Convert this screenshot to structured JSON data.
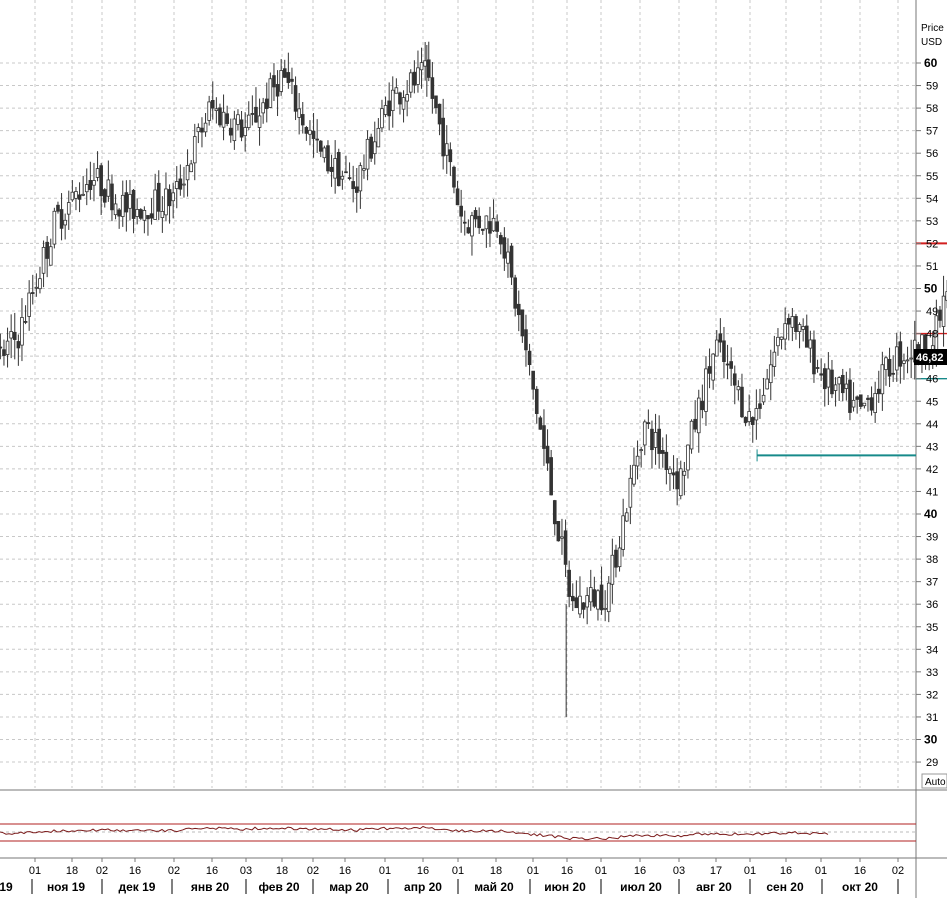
{
  "chart_data": {
    "type": "candlestick",
    "price_axis": {
      "label_line1": "Price",
      "label_line2": "USD",
      "ylim": [
        28,
        61
      ]
    },
    "y_ticks": [
      29,
      30,
      31,
      32,
      33,
      34,
      35,
      36,
      37,
      38,
      39,
      40,
      41,
      42,
      43,
      44,
      45,
      46,
      47,
      48,
      49,
      50,
      51,
      52,
      53,
      54,
      55,
      56,
      57,
      58,
      59,
      60
    ],
    "y_bold_ticks": [
      30,
      40,
      50,
      60
    ],
    "last_price": "46,82",
    "auto_label": "Auto",
    "day_ticks": [
      "01",
      "18",
      "02",
      "16",
      "02",
      "16",
      "03",
      "18",
      "02",
      "16",
      "01",
      "16",
      "01",
      "18",
      "01",
      "16",
      "01",
      "16",
      "03",
      "17",
      "01",
      "16",
      "01",
      "16",
      "02"
    ],
    "month_labels": [
      "19",
      "ноя 19",
      "дек 19",
      "янв 20",
      "фев 20",
      "мар 20",
      "апр 20",
      "май 20",
      "июн 20",
      "июл 20",
      "авг 20",
      "сен 20",
      "окт 20"
    ],
    "levels": [
      {
        "name": "resistance",
        "price": 52.0,
        "start": "2020-06-01",
        "color": "#d21f1f"
      },
      {
        "name": "resistance",
        "price": 48.0,
        "start": "2020-07-01",
        "color": "#d21f1f"
      },
      {
        "name": "support",
        "price": 46.0,
        "start": "2020-08-27",
        "color": "#178a8a"
      },
      {
        "name": "support",
        "price": 42.6,
        "start": "2020-04-24",
        "color": "#178a8a"
      }
    ],
    "close_path": [
      [
        "2019-10-15",
        44.0
      ],
      [
        "2019-10-22",
        47.5
      ],
      [
        "2019-10-29",
        49.5
      ],
      [
        "2019-11-05",
        47.5
      ],
      [
        "2019-11-12",
        47.0
      ],
      [
        "2019-11-19",
        45.5
      ],
      [
        "2019-11-26",
        46.0
      ],
      [
        "2019-12-03",
        48.0
      ],
      [
        "2019-12-10",
        53.0
      ],
      [
        "2019-12-17",
        55.0
      ],
      [
        "2019-12-24",
        53.5
      ],
      [
        "2020-01-02",
        54.0
      ],
      [
        "2020-01-09",
        58.0
      ],
      [
        "2020-01-16",
        57.0
      ],
      [
        "2020-01-23",
        59.5
      ],
      [
        "2020-01-30",
        56.0
      ],
      [
        "2020-02-06",
        54.5
      ],
      [
        "2020-02-13",
        58.5
      ],
      [
        "2020-02-20",
        59.5
      ],
      [
        "2020-02-27",
        53.0
      ],
      [
        "2020-03-05",
        53.0
      ],
      [
        "2020-03-12",
        45.0
      ],
      [
        "2020-03-19",
        36.0
      ],
      [
        "2020-03-26",
        36.5
      ],
      [
        "2020-04-02",
        44.0
      ],
      [
        "2020-04-09",
        41.5
      ],
      [
        "2020-04-16",
        47.5
      ],
      [
        "2020-04-23",
        44.0
      ],
      [
        "2020-04-30",
        49.0
      ],
      [
        "2020-05-07",
        46.0
      ],
      [
        "2020-05-14",
        44.5
      ],
      [
        "2020-05-21",
        47.0
      ],
      [
        "2020-05-28",
        47.5
      ],
      [
        "2020-06-04",
        53.5
      ],
      [
        "2020-06-11",
        49.0
      ],
      [
        "2020-06-18",
        51.0
      ],
      [
        "2020-06-25",
        48.5
      ],
      [
        "2020-07-02",
        50.5
      ],
      [
        "2020-07-09",
        49.0
      ],
      [
        "2020-07-16",
        51.0
      ],
      [
        "2020-07-23",
        50.5
      ],
      [
        "2020-07-30",
        48.5
      ],
      [
        "2020-08-06",
        45.0
      ],
      [
        "2020-08-13",
        43.0
      ],
      [
        "2020-08-20",
        45.0
      ],
      [
        "2020-08-27",
        46.5
      ],
      [
        "2020-09-03",
        50.0
      ],
      [
        "2020-09-10",
        50.5
      ],
      [
        "2020-09-17",
        48.5
      ],
      [
        "2020-09-24",
        50.5
      ],
      [
        "2020-10-01",
        46.82
      ]
    ],
    "notable_extremes": {
      "high": 60.8,
      "low": 31.0
    }
  }
}
